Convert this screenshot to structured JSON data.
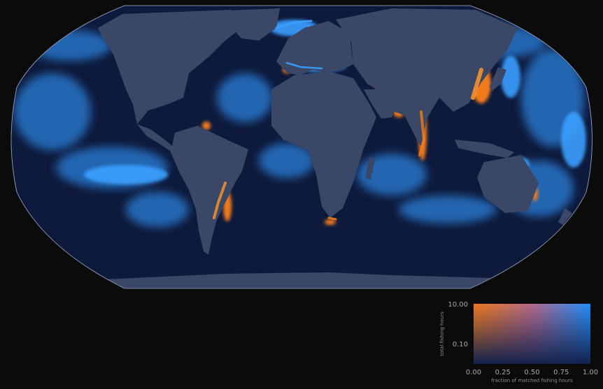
{
  "map": {
    "projection": "robinson",
    "ocean_color": "#0e1a3c",
    "land_color": "#3a4766",
    "highlight_colors": {
      "high_matched": "#1e90ff",
      "low_matched": "#f07a1a"
    }
  },
  "legend": {
    "y_axis_label": "total fishing hours",
    "x_axis_label": "fraction of matched fishing hours",
    "y_ticks": [
      "10.00",
      "0.10"
    ],
    "x_ticks": [
      "0.00",
      "0.25",
      "0.50",
      "0.75",
      "1.00"
    ],
    "colors": {
      "orange": "#f07a1a",
      "blue": "#1e90ff",
      "dark": "#13224d"
    }
  }
}
